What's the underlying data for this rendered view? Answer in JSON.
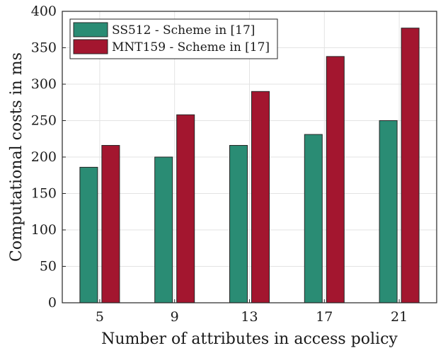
{
  "chart_data": {
    "type": "bar",
    "title": "",
    "xlabel": "Number of attributes in access policy",
    "ylabel": "Computational costs in ms",
    "categories": [
      "5",
      "9",
      "13",
      "17",
      "21"
    ],
    "series": [
      {
        "name": "SS512 - Scheme in [17]",
        "values": [
          186,
          200,
          216,
          231,
          250
        ],
        "color": "#2a8c74"
      },
      {
        "name": "MNT159 - Scheme in [17]",
        "values": [
          216,
          258,
          290,
          338,
          377
        ],
        "color": "#a3162f"
      }
    ],
    "ylim": [
      0,
      400
    ],
    "yticks": [
      "0",
      "50",
      "100",
      "150",
      "200",
      "250",
      "300",
      "350",
      "400"
    ],
    "grid": true,
    "legend_position": "top-left"
  }
}
